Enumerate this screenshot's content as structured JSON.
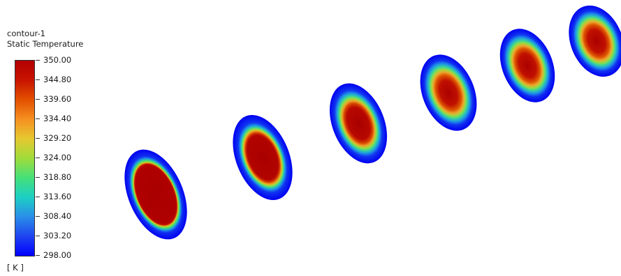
{
  "legend": {
    "contour_name": "contour-1",
    "variable": "Static Temperature",
    "unit": "[ K ]",
    "ticks": [
      "350.00",
      "344.80",
      "339.60",
      "334.40",
      "329.20",
      "324.00",
      "318.80",
      "313.60",
      "308.40",
      "303.20",
      "298.00"
    ],
    "colors": [
      "#b20000",
      "#c81400",
      "#e35000",
      "#f59020",
      "#e6c830",
      "#9fdc3a",
      "#45e07a",
      "#1ccfc4",
      "#2a8ee8",
      "#1f44f0",
      "#0000ff"
    ]
  }
}
